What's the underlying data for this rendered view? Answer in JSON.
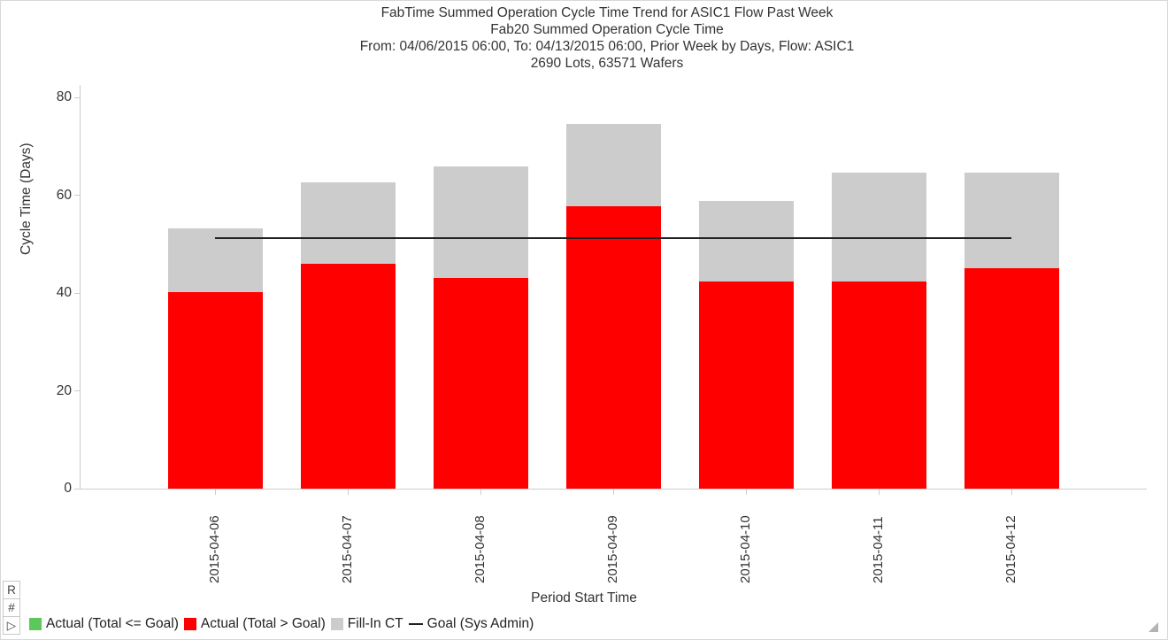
{
  "corner_buttons": [
    {
      "label": "R"
    },
    {
      "label": "#"
    },
    {
      "label": "▷"
    }
  ],
  "chart_data": {
    "type": "bar",
    "stacked": true,
    "title": "FabTime Summed Operation Cycle Time Trend for ASIC1 Flow Past Week",
    "subtitle_lines": [
      "Fab20 Summed Operation Cycle Time",
      "From: 04/06/2015 06:00, To: 04/13/2015 06:00, Prior Week by Days, Flow: ASIC1",
      "2690 Lots, 63571 Wafers"
    ],
    "xlabel": "Period Start Time",
    "ylabel": "Cycle Time (Days)",
    "ylim": [
      0,
      80
    ],
    "yticks": [
      0,
      20,
      40,
      60,
      80
    ],
    "grid": false,
    "categories": [
      "2015-04-06",
      "2015-04-07",
      "2015-04-08",
      "2015-04-09",
      "2015-04-10",
      "2015-04-11",
      "2015-04-12"
    ],
    "series": [
      {
        "name": "Actual (Total > Goal)",
        "color": "#FF0000",
        "values": [
          40.1,
          45.9,
          43.0,
          57.8,
          42.3,
          42.3,
          45.0
        ]
      },
      {
        "name": "Fill-In CT",
        "color": "#CCCCCC",
        "values": [
          13.1,
          16.8,
          22.8,
          16.7,
          16.5,
          22.3,
          19.7
        ]
      }
    ],
    "totals": [
      53.2,
      62.7,
      65.8,
      74.5,
      58.8,
      64.6,
      64.7
    ],
    "goal_line": {
      "name": "Goal (Sys Admin)",
      "value": 51.3,
      "color": "#222222"
    },
    "legend_position": "bottom-left",
    "legend": [
      {
        "label": "Actual (Total <= Goal)",
        "color": "#5CC85C",
        "swatch": "square"
      },
      {
        "label": "Actual (Total > Goal)",
        "color": "#FF0000",
        "swatch": "square"
      },
      {
        "label": "Fill-In CT",
        "color": "#CCCCCC",
        "swatch": "square"
      },
      {
        "label": "Goal (Sys Admin)",
        "color": "#222222",
        "swatch": "line"
      }
    ],
    "axis_color": "#CCCCCC",
    "text_color": "#333333"
  }
}
